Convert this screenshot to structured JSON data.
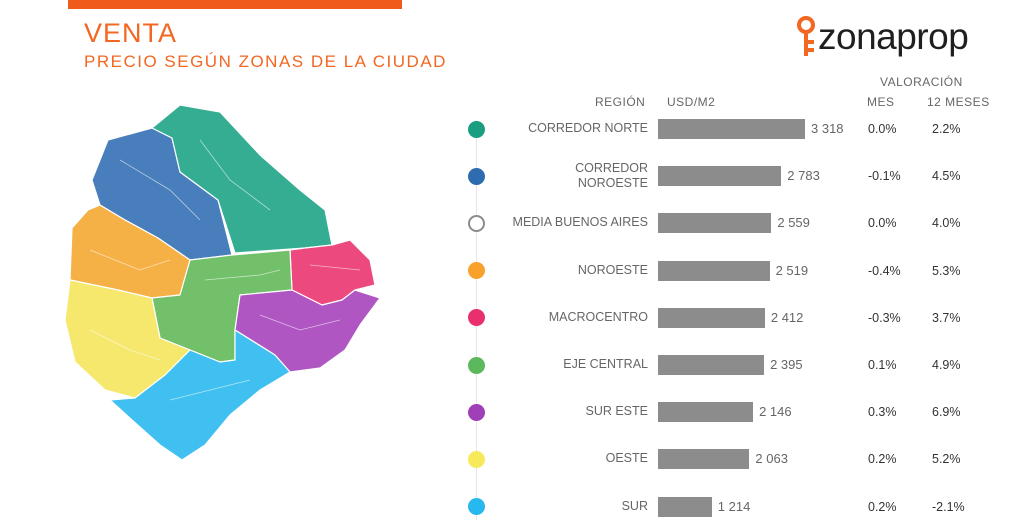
{
  "title": "VENTA",
  "subtitle": "PRECIO SEGÚN ZONAS DE LA CIUDAD",
  "logo_text": "zonaprop",
  "headers": {
    "region": "REGIÓN",
    "usd": "USD/M2",
    "valoracion": "VALORACIÓN",
    "mes": "MES",
    "doce": "12 MESES"
  },
  "colors": {
    "brand": "#f26722",
    "corredor_norte": "#1a9e82",
    "corredor_noroeste": "#2e6cb0",
    "media": "#ffffff",
    "noroeste": "#f9a22b",
    "macrocentro": "#e8306f",
    "eje_central": "#5cb85c",
    "sur_este": "#a040b8",
    "oeste": "#f7ea5a",
    "sur": "#27b8ee",
    "bar": "#8c8c8c"
  },
  "chart_data": {
    "type": "bar",
    "orientation": "horizontal",
    "title": "PRECIO SEGÚN ZONAS DE LA CIUDAD",
    "xlabel": "USD/M2",
    "ylabel": "REGIÓN",
    "xlim": [
      0,
      3318
    ],
    "grid": false,
    "categories": [
      "CORREDOR NORTE",
      "CORREDOR NOROESTE",
      "MEDIA BUENOS AIRES",
      "NOROESTE",
      "MACROCENTRO",
      "EJE CENTRAL",
      "SUR ESTE",
      "OESTE",
      "SUR"
    ],
    "values": [
      3318,
      2783,
      2559,
      2519,
      2412,
      2395,
      2146,
      2063,
      1214
    ],
    "value_labels": [
      "3 318",
      "2 783",
      "2 559",
      "2 519",
      "2 412",
      "2 395",
      "2 146",
      "2 063",
      "1 214"
    ],
    "mes": [
      "0.0%",
      "-0.1%",
      "0.0%",
      "-0.4%",
      "-0.3%",
      "0.1%",
      "0.3%",
      "0.2%",
      "0.2%"
    ],
    "doce_meses": [
      "2.2%",
      "4.5%",
      "4.0%",
      "5.3%",
      "3.7%",
      "4.9%",
      "6.9%",
      "5.2%",
      "-2.1%"
    ],
    "dot_colors": [
      "#1a9e82",
      "#2e6cb0",
      "#ffffff",
      "#f9a22b",
      "#e8306f",
      "#5cb85c",
      "#a040b8",
      "#f7ea5a",
      "#27b8ee"
    ]
  }
}
